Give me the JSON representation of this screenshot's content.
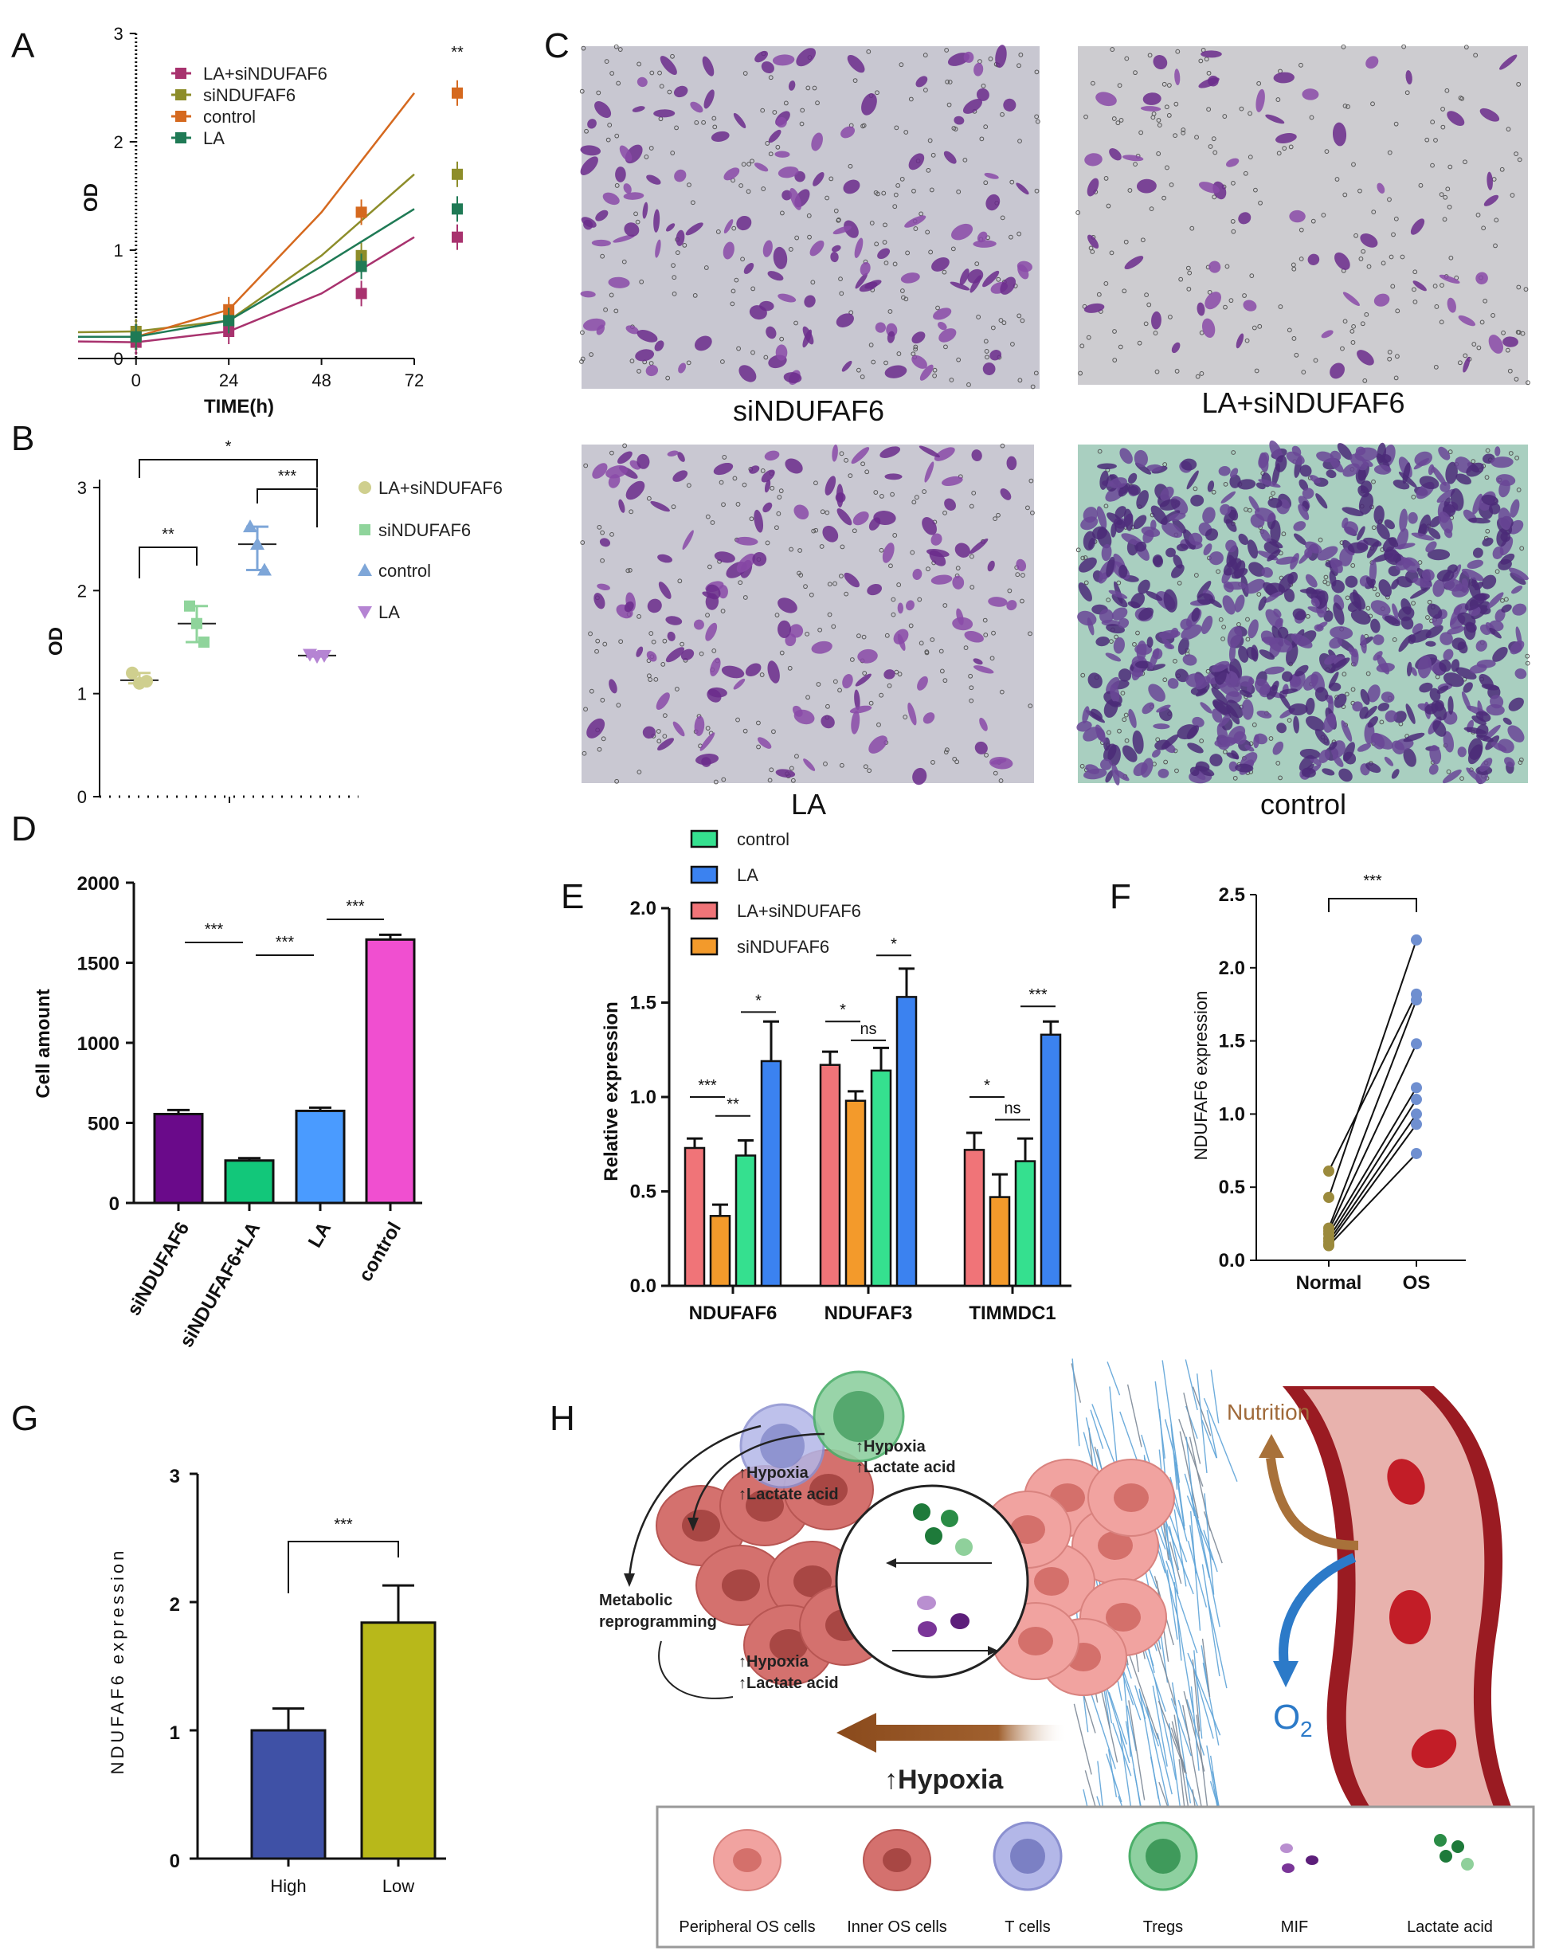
{
  "panels": {
    "A": "A",
    "B": "B",
    "C": "C",
    "D": "D",
    "E": "E",
    "F": "F",
    "G": "G",
    "H": "H"
  },
  "colors": {
    "la_sindufaf6": "#a8326e",
    "sindufaf6": "#8d8d2a",
    "control": "#d5691f",
    "la": "#1f7a55",
    "b_la_si": "#cfcf8e",
    "b_si": "#8fd49b",
    "b_control": "#7ea6d8",
    "b_la": "#b584d3",
    "d_si": "#6a0a8a",
    "d_sila": "#12c77a",
    "d_la": "#4a9bff",
    "d_control": "#f04fd0",
    "e_control": "#35e08f",
    "e_la": "#3b82f0",
    "e_lasi": "#f07478",
    "e_si": "#f39a2b",
    "g_high": "#3f51a6",
    "g_low": "#b8b81a",
    "f_normal": "#9b8a3c",
    "f_os": "#6f8fd0",
    "stain": "#6b2c8c",
    "stain_bg": "#c9c8cf"
  },
  "chart_data": [
    {
      "id": "A",
      "type": "line",
      "xlabel": "TIME(h)",
      "ylabel": "OD",
      "x": [
        0,
        24,
        48,
        72
      ],
      "xlim": [
        -15,
        72
      ],
      "ylim": [
        0,
        3
      ],
      "xticks": [
        "0",
        "24",
        "48",
        "72"
      ],
      "yticks": [
        "0",
        "1",
        "2",
        "3"
      ],
      "significance": "**",
      "series": [
        {
          "name": "LA+siNDUFAF6",
          "color_key": "la_sindufaf6",
          "values": [
            0.15,
            0.25,
            0.6,
            1.12
          ]
        },
        {
          "name": "siNDUFAF6",
          "color_key": "sindufaf6",
          "values": [
            0.25,
            0.35,
            0.95,
            1.7
          ]
        },
        {
          "name": "control",
          "color_key": "control",
          "values": [
            0.2,
            0.45,
            1.35,
            2.45
          ]
        },
        {
          "name": "LA",
          "color_key": "la",
          "values": [
            0.2,
            0.35,
            0.85,
            1.38
          ]
        }
      ]
    },
    {
      "id": "B",
      "type": "scatter",
      "ylabel": "OD",
      "ylim": [
        0,
        3
      ],
      "yticks": [
        "0",
        "1",
        "2",
        "3"
      ],
      "series": [
        {
          "name": "LA+siNDUFAF6",
          "color_key": "b_la_si",
          "mean": 1.13,
          "points": [
            1.2,
            1.1,
            1.12
          ]
        },
        {
          "name": "siNDUFAF6",
          "color_key": "b_si",
          "mean": 1.68,
          "points": [
            1.85,
            1.68,
            1.5
          ]
        },
        {
          "name": "control",
          "color_key": "b_control",
          "mean": 2.45,
          "points": [
            2.62,
            2.45,
            2.2
          ]
        },
        {
          "name": "LA",
          "color_key": "b_la",
          "mean": 1.37,
          "points": [
            1.38,
            1.36,
            1.37
          ]
        }
      ],
      "brackets": [
        {
          "from": 0,
          "to": 1,
          "label": "**"
        },
        {
          "from": 2,
          "to": 3,
          "label": "***"
        },
        {
          "from": 0,
          "to": 3,
          "label": "*"
        }
      ]
    },
    {
      "id": "D",
      "type": "bar",
      "ylabel": "Cell amount",
      "ylim": [
        0,
        2000
      ],
      "yticks": [
        "0",
        "500",
        "1000",
        "1500",
        "2000"
      ],
      "categories": [
        "siNDUFAF6",
        "siNDUFAF6+LA",
        "LA",
        "control"
      ],
      "values": [
        555,
        265,
        575,
        1645
      ],
      "errors": [
        25,
        15,
        20,
        30
      ],
      "color_keys": [
        "d_si",
        "d_sila",
        "d_la",
        "d_control"
      ],
      "brackets": [
        {
          "from": 0,
          "to": 1,
          "label": "***"
        },
        {
          "from": 1,
          "to": 2,
          "label": "***"
        },
        {
          "from": 2,
          "to": 3,
          "label": "***"
        }
      ]
    },
    {
      "id": "E",
      "type": "bar",
      "ylabel": "Relative expression",
      "ylim": [
        0,
        2.0
      ],
      "yticks": [
        "0.0",
        "0.5",
        "1.0",
        "1.5",
        "2.0"
      ],
      "categories": [
        "NDUFAF6",
        "NDUFAF3",
        "TIMMDC1"
      ],
      "legend_order": [
        "control",
        "LA",
        "LA+siNDUFAF6",
        "siNDUFAF6"
      ],
      "legend_color_keys": [
        "e_control",
        "e_la",
        "e_lasi",
        "e_si"
      ],
      "bar_order_color_keys": [
        "e_lasi",
        "e_si",
        "e_control",
        "e_la"
      ],
      "series": [
        {
          "name": "LA+siNDUFAF6",
          "values": [
            0.73,
            1.17,
            0.72
          ],
          "errors": [
            0.05,
            0.07,
            0.09
          ]
        },
        {
          "name": "siNDUFAF6",
          "values": [
            0.37,
            0.98,
            0.47
          ],
          "errors": [
            0.06,
            0.05,
            0.12
          ]
        },
        {
          "name": "control",
          "values": [
            0.69,
            1.14,
            0.66
          ],
          "errors": [
            0.08,
            0.12,
            0.12
          ]
        },
        {
          "name": "LA",
          "values": [
            1.19,
            1.53,
            1.33
          ],
          "errors": [
            0.21,
            0.15,
            0.07
          ]
        }
      ],
      "brackets": [
        {
          "group": 0,
          "from": 0,
          "to": 1,
          "label": "***",
          "level": 1.0
        },
        {
          "group": 0,
          "from": 1,
          "to": 2,
          "label": "**",
          "level": 0.9
        },
        {
          "group": 0,
          "from": 2,
          "to": 3,
          "label": "*",
          "level": 1.45
        },
        {
          "group": 1,
          "from": 0,
          "to": 1,
          "label": "*",
          "level": 1.4
        },
        {
          "group": 1,
          "from": 1,
          "to": 2,
          "label": "ns",
          "level": 1.3
        },
        {
          "group": 1,
          "from": 2,
          "to": 3,
          "label": "*",
          "level": 1.75
        },
        {
          "group": 2,
          "from": 0,
          "to": 1,
          "label": "*",
          "level": 1.0
        },
        {
          "group": 2,
          "from": 1,
          "to": 2,
          "label": "ns",
          "level": 0.88
        },
        {
          "group": 2,
          "from": 2,
          "to": 3,
          "label": "***",
          "level": 1.48
        }
      ]
    },
    {
      "id": "F",
      "type": "scatter",
      "ylabel": "NDUFAF6 expression",
      "ylim": [
        0,
        2.5
      ],
      "yticks": [
        "0.0",
        "0.5",
        "1.0",
        "1.5",
        "2.0",
        "2.5"
      ],
      "categories": [
        "Normal",
        "OS"
      ],
      "significance": "***",
      "pairs": [
        [
          0.61,
          1.82
        ],
        [
          0.43,
          2.19
        ],
        [
          0.22,
          1.78
        ],
        [
          0.2,
          1.48
        ],
        [
          0.18,
          1.18
        ],
        [
          0.15,
          1.1
        ],
        [
          0.13,
          1.0
        ],
        [
          0.11,
          0.93
        ],
        [
          0.1,
          0.73
        ]
      ]
    },
    {
      "id": "G",
      "type": "bar",
      "ylabel": "NDUFAF6 expression",
      "ylim": [
        0,
        3
      ],
      "yticks": [
        "0",
        "1",
        "2",
        "3"
      ],
      "categories": [
        "High",
        "Low"
      ],
      "values": [
        1.0,
        1.84
      ],
      "errors": [
        0.17,
        0.29
      ],
      "color_keys": [
        "g_high",
        "g_low"
      ],
      "significance": "***"
    }
  ],
  "panelC": {
    "captions": [
      "siNDUFAF6",
      "LA+siNDUFAF6",
      "LA",
      "control"
    ]
  },
  "panelH": {
    "labels": {
      "nutrition": "Nutrition",
      "o2": "O",
      "o2_sub": "2",
      "hypoxia_main": "Hypoxia",
      "metabolic1": "Metabolic",
      "metabolic2": "reprogramming",
      "hyp1": "Hypoxia",
      "lac1": "Lactate acid",
      "hyp2": "Hypoxia",
      "lac2": "Lactate acid",
      "hyp3": "Hypoxia",
      "lac3": "Lactate acid",
      "up": "↑"
    },
    "legend": [
      "Peripheral OS cells",
      "Inner OS cells",
      "T cells",
      "Tregs",
      "MIF",
      "Lactate acid"
    ]
  }
}
